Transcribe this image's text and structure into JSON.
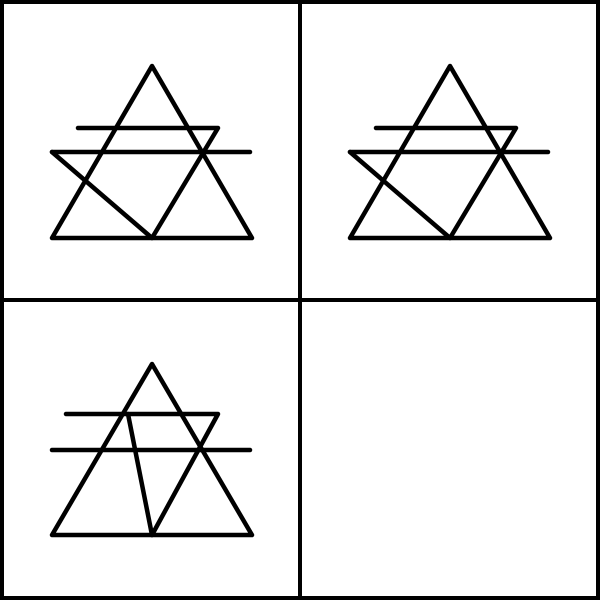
{
  "puzzle": {
    "layout": "2x2 grid",
    "colors": {
      "background": "#ffffff",
      "stroke": "#000000"
    },
    "panels": [
      {
        "id": "top-left",
        "figure": "triangle-with-two-bars-and-diagonal",
        "empty": false
      },
      {
        "id": "top-right",
        "figure": "triangle-with-two-bars-and-diagonal",
        "empty": false
      },
      {
        "id": "bottom-left",
        "figure": "triangle-with-two-bars-and-slanted-segment",
        "empty": false
      },
      {
        "id": "bottom-right",
        "figure": "",
        "empty": true
      }
    ]
  }
}
